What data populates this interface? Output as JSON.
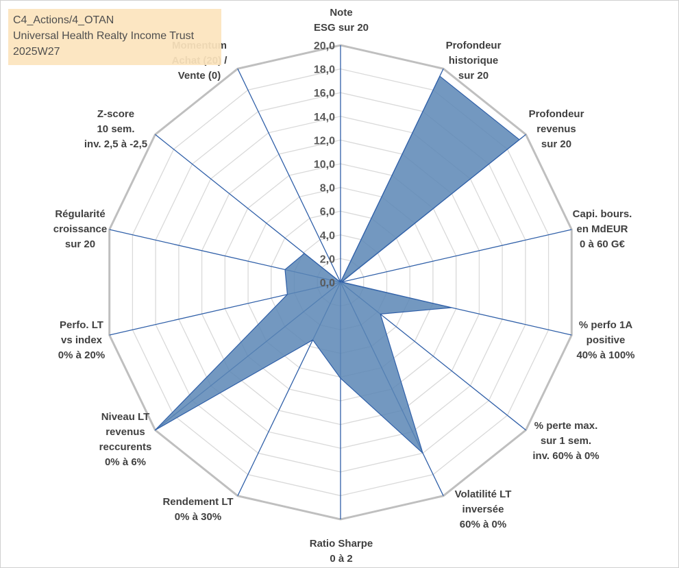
{
  "title_box": {
    "line1": "C4_Actions/4_OTAN",
    "line2": "Universal Health Realty Income Trust",
    "line3": "2025W27"
  },
  "colors": {
    "fill": "#5b86b5",
    "axis": "#2f5fa8",
    "grid_outer": "#bfbfbf",
    "grid_inner": "#d9d9d9",
    "title_bg": "#fce4bd"
  },
  "chart_data": {
    "type": "radar",
    "range": [
      0,
      20
    ],
    "tick_step": 2,
    "tick_labels": [
      "0,0",
      "2,0",
      "4,0",
      "6,0",
      "8,0",
      "10,0",
      "12,0",
      "14,0",
      "16,0",
      "18,0",
      "20,0"
    ],
    "axes": [
      [
        "Note",
        "ESG sur 20"
      ],
      [
        "Profondeur",
        "historique",
        "sur 20"
      ],
      [
        "Profondeur",
        "revenus",
        "sur 20"
      ],
      [
        "Capi. bours.",
        "en MdEUR",
        "0 à 60 G€"
      ],
      [
        "% perfo 1A",
        "positive",
        "40% à 100%"
      ],
      [
        "% perte max.",
        "sur 1 sem.",
        "inv. 60% à 0%"
      ],
      [
        "Volatilité LT",
        "inversée",
        "60% à 0%"
      ],
      [
        "Ratio Sharpe",
        "0 à 2"
      ],
      [
        "Rendement LT",
        "0% à 30%"
      ],
      [
        "Niveau LT",
        "revenus",
        "reccurents",
        "0% à 6%"
      ],
      [
        "Perfo. LT",
        "vs index",
        "0% à 20%"
      ],
      [
        "Régularité",
        "croissance",
        "sur 20"
      ],
      [
        "Z-score",
        "10 sem.",
        "inv. 2,5 à -2,5"
      ],
      [
        "Momentum",
        "Achat (20) /",
        "Vente (0)"
      ]
    ],
    "values": [
      0,
      19.3,
      19.3,
      0.1,
      9.6,
      4.3,
      16.0,
      8.1,
      5.4,
      20.0,
      4.6,
      4.8,
      3.9,
      0
    ],
    "grid": true,
    "legend": "none"
  }
}
